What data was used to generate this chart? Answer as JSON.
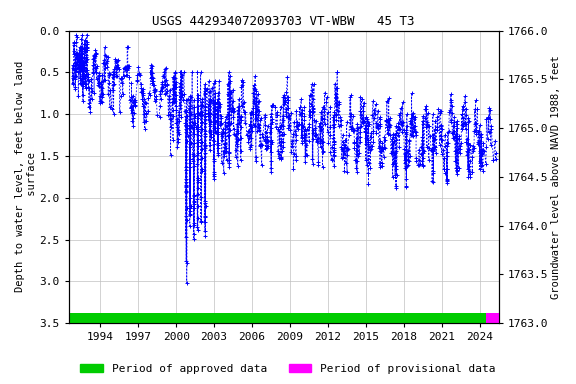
{
  "title": "USGS 442934072093703 VT-WBW   45 T3",
  "ylabel_left": "Depth to water level, feet below land\n surface",
  "ylabel_right": "Groundwater level above NAVD 1988, feet",
  "ylim_left": [
    3.5,
    0.0
  ],
  "ylim_right": [
    1763.0,
    1766.0
  ],
  "xlim": [
    1991.5,
    2025.5
  ],
  "xticks": [
    1994,
    1997,
    2000,
    2003,
    2006,
    2009,
    2012,
    2015,
    2018,
    2021,
    2024
  ],
  "yticks_left": [
    0.0,
    0.5,
    1.0,
    1.5,
    2.0,
    2.5,
    3.0,
    3.5
  ],
  "yticks_right": [
    1763.0,
    1763.5,
    1764.0,
    1764.5,
    1765.0,
    1765.5,
    1766.0
  ],
  "data_color": "#0000FF",
  "background_color": "#ffffff",
  "grid_color": "#c0c0c0",
  "approved_color": "#00cc00",
  "provisional_color": "#ff00ff",
  "approved_start": 1991.5,
  "approved_end": 2024.5,
  "provisional_start": 2024.5,
  "provisional_end": 2025.5,
  "bar_y": 3.38,
  "bar_height": 0.12,
  "title_fontsize": 9,
  "axis_label_fontsize": 7.5,
  "tick_fontsize": 8,
  "legend_fontsize": 8
}
